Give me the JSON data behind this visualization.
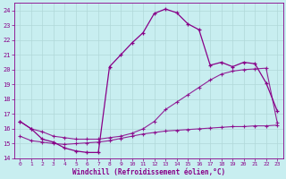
{
  "xlabel": "Windchill (Refroidissement éolien,°C)",
  "background_color": "#c8eef0",
  "grid_color": "#b0d8d8",
  "line_color": "#880088",
  "xlim": [
    -0.5,
    23.5
  ],
  "ylim": [
    14,
    24.5
  ],
  "xticks": [
    0,
    1,
    2,
    3,
    4,
    5,
    6,
    7,
    8,
    9,
    10,
    11,
    12,
    13,
    14,
    15,
    16,
    17,
    18,
    19,
    20,
    21,
    22,
    23
  ],
  "yticks": [
    14,
    15,
    16,
    17,
    18,
    19,
    20,
    21,
    22,
    23,
    24
  ],
  "series1_x": [
    0,
    1,
    2,
    3,
    4,
    5,
    6,
    7,
    8,
    9,
    10,
    11,
    12,
    13,
    14,
    15,
    16,
    17,
    18,
    19,
    20,
    21,
    22,
    23
  ],
  "series1_y": [
    16.5,
    16.0,
    15.3,
    15.1,
    14.7,
    14.5,
    14.4,
    14.4,
    20.2,
    21.0,
    21.8,
    22.5,
    23.8,
    24.1,
    23.85,
    23.1,
    22.7,
    20.3,
    20.5,
    20.2,
    20.5,
    20.4,
    19.1,
    17.2
  ],
  "series2_x": [
    0,
    1,
    2,
    3,
    4,
    5,
    6,
    7,
    8,
    9,
    10,
    11,
    12,
    13,
    14,
    15,
    16,
    17,
    18,
    19,
    20,
    21,
    22,
    23
  ],
  "series2_y": [
    15.5,
    15.2,
    15.1,
    15.0,
    14.95,
    15.0,
    15.05,
    15.1,
    15.2,
    15.35,
    15.5,
    15.65,
    15.75,
    15.85,
    15.9,
    15.95,
    16.0,
    16.05,
    16.1,
    16.15,
    16.15,
    16.2,
    16.2,
    16.25
  ],
  "series3_x": [
    0,
    1,
    2,
    3,
    4,
    5,
    6,
    7,
    8,
    9,
    10,
    11,
    12,
    13,
    14,
    15,
    16,
    17,
    18,
    19,
    20,
    21,
    22,
    23
  ],
  "series3_y": [
    16.5,
    16.0,
    15.8,
    15.5,
    15.4,
    15.3,
    15.3,
    15.3,
    15.4,
    15.5,
    15.7,
    16.0,
    16.5,
    17.3,
    17.8,
    18.3,
    18.8,
    19.3,
    19.7,
    19.9,
    20.0,
    20.05,
    20.1,
    16.4
  ]
}
